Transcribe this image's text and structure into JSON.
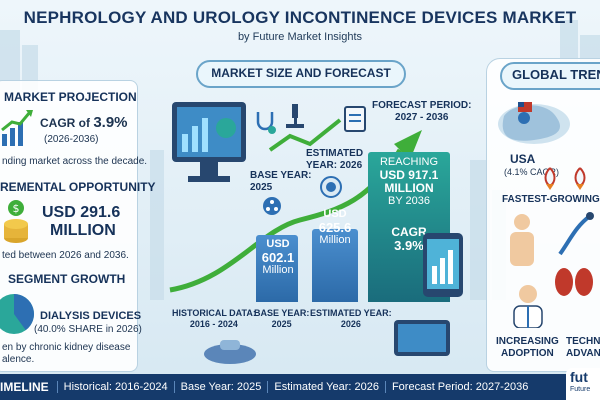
{
  "header": {
    "title": "NEPHROLOGY AND UROLOGY INCONTINENCE DEVICES MARKET",
    "subtitle": "by Future Market Insights"
  },
  "left_panel": {
    "projection": {
      "title": "MARKET PROJECTION",
      "cagr_prefix": "CAGR of ",
      "cagr_value": "3.9%",
      "period": "(2026-2036)",
      "note": "nding market across the decade."
    },
    "opportunity": {
      "title": "REMENTAL OPPORTUNITY",
      "value_line1": "USD 291.6",
      "value_line2": "MILLION",
      "note": "ted between 2026 and 2036."
    },
    "segment": {
      "title": "SEGMENT GROWTH",
      "name": "DIALYSIS DEVICES",
      "share": "(40.0% SHARE in 2026)",
      "note_line1": "en by chronic kidney disease",
      "note_line2": "alence.",
      "share_fraction": 0.4
    }
  },
  "center": {
    "title": "MARKET SIZE AND FORECAST",
    "base_year": {
      "label_line1": "BASE YEAR:",
      "label_line2": "2025"
    },
    "estimated_year": {
      "label_line1": "ESTIMATED",
      "label_line2": "YEAR: 2026"
    },
    "forecast_period": {
      "label_line1": "FORECAST PERIOD:",
      "label_line2": "2027 - 2036"
    },
    "bars": [
      {
        "prefix": "USD",
        "value": "602.1",
        "unit": "Million",
        "amount": 602.1
      },
      {
        "prefix": "USD",
        "value": "625.6",
        "unit": "Million",
        "amount": 625.6
      }
    ],
    "reaching": {
      "line1": "REACHING",
      "line2": "USD 917.1",
      "line3": "MILLION",
      "line4": "BY 2036",
      "cagr_label": "CAGR",
      "cagr_value": "3.9%",
      "amount": 917.1
    },
    "bottom_labels": [
      {
        "line1": "HISTORICAL DATA:",
        "line2": "2016 - 2024"
      },
      {
        "line1": "BASE YEAR:",
        "line2": "2025"
      },
      {
        "line1": "ESTIMATED YEAR:",
        "line2": "2026"
      }
    ]
  },
  "right_panel": {
    "title": "GLOBAL TREN",
    "usa_label": "USA",
    "usa_cagr": "(4.1% CAGR)",
    "fastest": "FASTEST-GROWING MA",
    "adoption_line1": "INCREASING",
    "adoption_line2": "ADOPTION",
    "techn_line1": "TECHN",
    "techn_line2": "ADVAN"
  },
  "timeline": {
    "label": "IMELINE",
    "items": [
      "Historical: 2016-2024",
      "Base Year: 2025",
      "Estimated Year: 2026",
      "Forecast Period: 2027-2036"
    ]
  },
  "brand": {
    "logo_text": "fut",
    "logo_sub": "Future"
  },
  "colors": {
    "navy": "#153a6b",
    "blue_bar": "#3f7fc1",
    "teal_bar": "#1e9a8e",
    "green_arrow": "#3fae3a",
    "pie_blue": "#2d6fb3",
    "pie_teal": "#2aa79a"
  }
}
